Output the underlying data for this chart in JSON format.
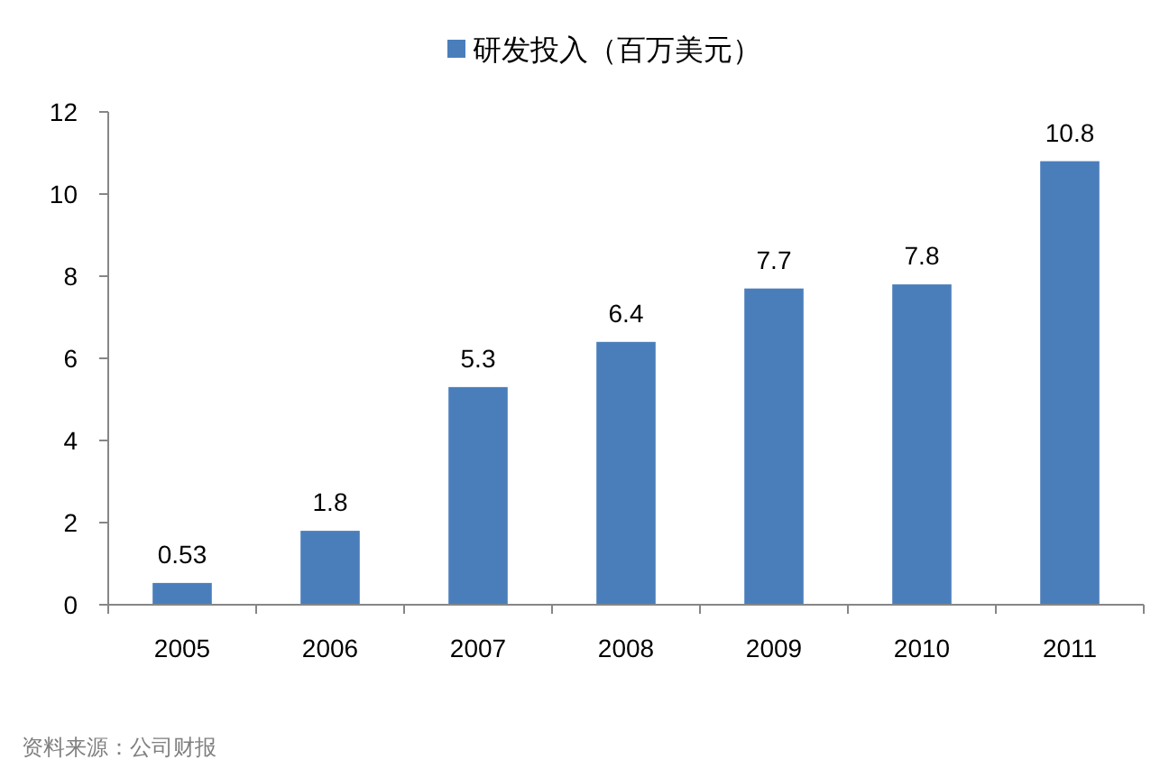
{
  "chart_data": {
    "type": "bar",
    "categories": [
      "2005",
      "2006",
      "2007",
      "2008",
      "2009",
      "2010",
      "2011"
    ],
    "series": [
      {
        "name": "研发投入（百万美元）",
        "color": "#4a7ebb",
        "values": [
          0.53,
          1.8,
          5.3,
          6.4,
          7.7,
          7.8,
          10.8
        ]
      }
    ],
    "ylim": [
      0,
      12
    ],
    "yticks": [
      0,
      2,
      4,
      6,
      8,
      10,
      12
    ],
    "data_labels": true,
    "legend": "top",
    "grid": false,
    "annotations": [
      "资料来源：公司财报"
    ]
  }
}
